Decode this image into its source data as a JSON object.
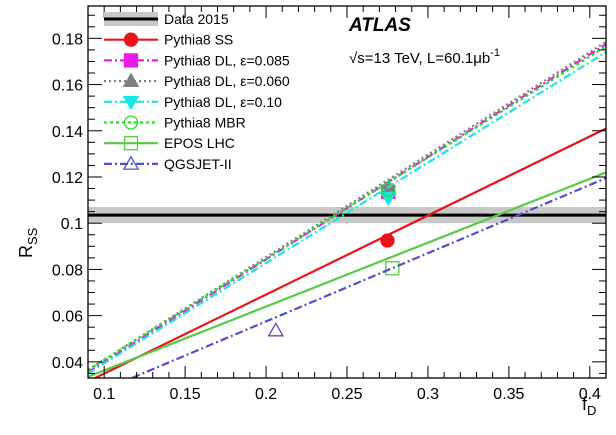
{
  "chart_data": {
    "type": "line",
    "title": "",
    "xlabel": "f",
    "xlabel_sub": "D",
    "ylabel": "R",
    "ylabel_sub": "SS",
    "xlim": [
      0.09,
      0.41
    ],
    "ylim": [
      0.033,
      0.194
    ],
    "x_ticks": [
      0.1,
      0.15,
      0.2,
      0.25,
      0.3,
      0.35,
      0.4
    ],
    "x_tick_labels": [
      "0.1",
      "0.15",
      "0.2",
      "0.25",
      "0.3",
      "0.35",
      "0.4"
    ],
    "y_ticks": [
      0.04,
      0.06,
      0.08,
      0.1,
      0.12,
      0.14,
      0.16,
      0.18
    ],
    "y_tick_labels": [
      "0.04",
      "0.06",
      "0.08",
      "0.1",
      "0.12",
      "0.14",
      "0.16",
      "0.18"
    ],
    "grid": false,
    "legend_position": "top-left",
    "annotations": {
      "experiment": "ATLAS",
      "info_prefix": "√s=13 TeV, L=60.1",
      "info_unit": "μb",
      "info_sup": "-1"
    },
    "data_band": {
      "name": "Data 2015",
      "value": 0.1035,
      "band_low": 0.1,
      "band_high": 0.107,
      "color": "#000000",
      "band_color": "#c8c8c8"
    },
    "series": [
      {
        "name": "Pythia8 SS",
        "color": "#e8141b",
        "dash": "",
        "marker": "circle-filled",
        "x": [
          0.09,
          0.41
        ],
        "y": [
          0.0315,
          0.141
        ],
        "marker_x": 0.275,
        "marker_y": 0.0925
      },
      {
        "name": "Pythia8 DL, ε=0.085",
        "color": "#e81ce8",
        "dash": "8 3 2 3",
        "marker": "square-filled",
        "x": [
          0.09,
          0.41
        ],
        "y": [
          0.0355,
          0.1775
        ],
        "marker_x": 0.2755,
        "marker_y": 0.1135
      },
      {
        "name": "Pythia8 DL, ε=0.060",
        "color": "#808080",
        "dash": "2 3",
        "marker": "triangle-up-filled",
        "x": [
          0.09,
          0.41
        ],
        "y": [
          0.0365,
          0.1785
        ],
        "marker_x": 0.2755,
        "marker_y": 0.115
      },
      {
        "name": "Pythia8 DL, ε=0.10",
        "color": "#19e6e6",
        "dash": "8 3 2 3",
        "marker": "triangle-down-filled",
        "x": [
          0.09,
          0.41
        ],
        "y": [
          0.035,
          0.174
        ],
        "marker_x": 0.2755,
        "marker_y": 0.111
      },
      {
        "name": "Pythia8 MBR",
        "color": "#1ee61e",
        "dash": "3 3",
        "marker": "circle-open",
        "x": [
          0.09,
          0.41
        ],
        "y": [
          0.0365,
          0.1765
        ],
        "marker_x": 0.2755,
        "marker_y": 0.1145
      },
      {
        "name": "EPOS LHC",
        "color": "#55cc44",
        "dash": "",
        "marker": "square-open",
        "x": [
          0.09,
          0.41
        ],
        "y": [
          0.0335,
          0.122
        ],
        "marker_x": 0.278,
        "marker_y": 0.0805
      },
      {
        "name": "QGSJET-II",
        "color": "#5050c8",
        "dash": "8 3 2 3",
        "marker": "triangle-up-open",
        "x": [
          0.09,
          0.41
        ],
        "y": [
          0.025,
          0.1195
        ],
        "marker_x": 0.206,
        "marker_y": 0.0535
      }
    ]
  }
}
